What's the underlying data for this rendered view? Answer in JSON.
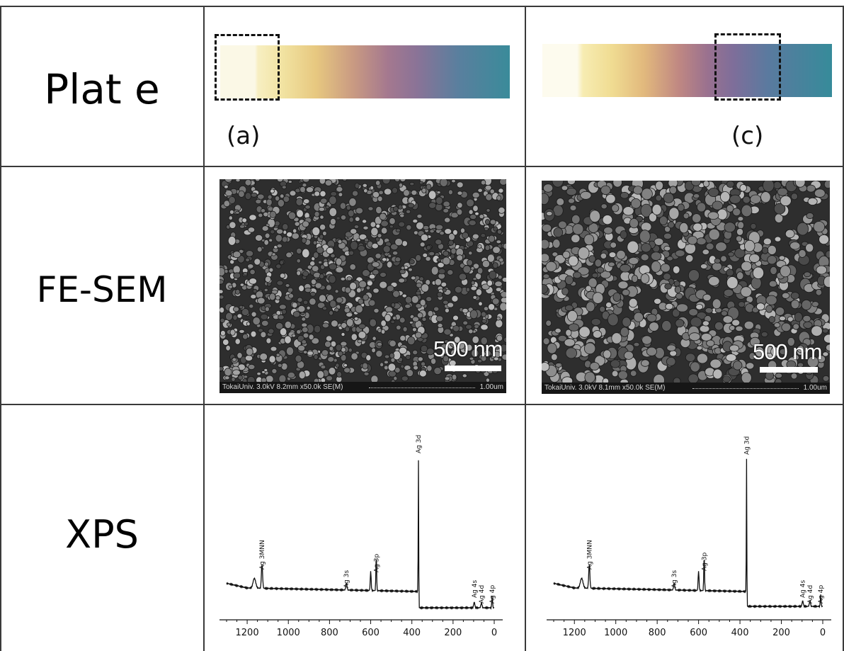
{
  "rows": {
    "plate": "Plat e",
    "fesem": "FE-SEM",
    "xps": "XPS"
  },
  "samples": {
    "a": {
      "label": "(a)",
      "sem": {
        "scale_text": "500 nm",
        "footer": "TokaiUniv. 3.0kV 8.2mm x50.0k SE(M)",
        "footer_scale": "1.00um"
      },
      "xps_chart": {
        "type": "line",
        "x_axis": {
          "direction": "reversed",
          "min": 0,
          "max": 1300,
          "ticks": [
            1200,
            1000,
            800,
            600,
            400,
            200,
            0
          ]
        },
        "peaks": [
          {
            "label": "Ag 3MNN",
            "x": 1128
          },
          {
            "label": "Ag 3s",
            "x": 718
          },
          {
            "label": "Ag 3p",
            "x": 573
          },
          {
            "label": "Ag 3d",
            "x": 368
          },
          {
            "label": "Ag 4s",
            "x": 97
          },
          {
            "label": "Ag 4d",
            "x": 62
          },
          {
            "label": "Ag 4p",
            "x": 10
          }
        ]
      }
    },
    "c": {
      "label": "(c)",
      "sem": {
        "scale_text": "500 nm",
        "footer": "TokaiUniv. 3.0kV 8.1mm x50.0k SE(M)",
        "footer_scale": "1.00um"
      },
      "xps_chart": {
        "type": "line",
        "x_axis": {
          "direction": "reversed",
          "min": 0,
          "max": 1300,
          "ticks": [
            1200,
            1000,
            800,
            600,
            400,
            200,
            0
          ]
        },
        "peaks": [
          {
            "label": "Ag 3MNN",
            "x": 1128
          },
          {
            "label": "Ag 3s",
            "x": 718
          },
          {
            "label": "Ag 3p",
            "x": 573
          },
          {
            "label": "Ag 3d",
            "x": 368
          },
          {
            "label": "Ag 4s",
            "x": 97
          },
          {
            "label": "Ag 4d",
            "x": 62
          },
          {
            "label": "Ag 4p",
            "x": 10
          }
        ]
      }
    }
  }
}
